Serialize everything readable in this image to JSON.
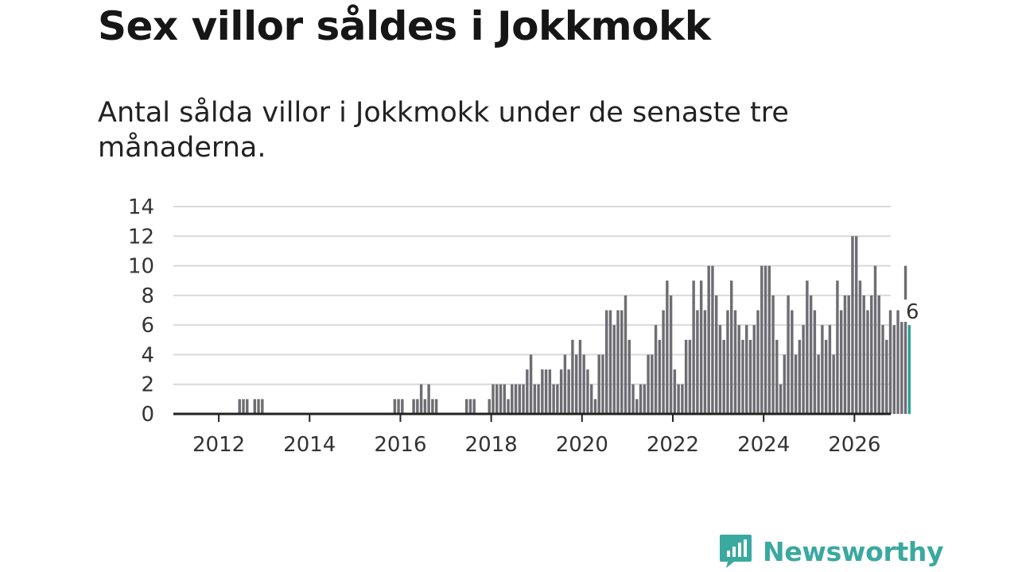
{
  "title": "Sex villor såldes i Jokkmokk",
  "subtitle": "Antal sålda villor i Jokkmokk under de senaste tre månaderna.",
  "brand": {
    "name": "Newsworthy",
    "color": "#3aa9a0"
  },
  "chart_data": {
    "type": "bar",
    "title": "Sex villor såldes i Jokkmokk",
    "subtitle": "Antal sålda villor i Jokkmokk under de senaste tre månaderna.",
    "xlabel": "",
    "ylabel": "",
    "ylim": [
      0,
      14
    ],
    "yticks": [
      0,
      2,
      4,
      6,
      8,
      10,
      12,
      14
    ],
    "xlim": [
      2011,
      2026.8
    ],
    "xticks": [
      2012,
      2014,
      2016,
      2018,
      2020,
      2022,
      2024,
      2026
    ],
    "grid": true,
    "bar_color": "#6d6d73",
    "highlight_color": "#2aa198",
    "start": "2011-01",
    "frequency": "monthly",
    "values": [
      0,
      0,
      0,
      0,
      0,
      0,
      0,
      0,
      0,
      0,
      0,
      0,
      0,
      0,
      0,
      0,
      0,
      1,
      1,
      1,
      0,
      1,
      1,
      1,
      0,
      0,
      0,
      0,
      0,
      0,
      0,
      0,
      0,
      0,
      0,
      0,
      0,
      0,
      0,
      0,
      0,
      0,
      0,
      0,
      0,
      0,
      0,
      0,
      0,
      0,
      0,
      0,
      0,
      0,
      0,
      0,
      0,
      0,
      1,
      1,
      1,
      0,
      0,
      1,
      1,
      2,
      1,
      2,
      1,
      1,
      0,
      0,
      0,
      0,
      0,
      0,
      0,
      1,
      1,
      1,
      0,
      0,
      0,
      1,
      2,
      2,
      2,
      2,
      1,
      2,
      2,
      2,
      2,
      3,
      4,
      2,
      2,
      3,
      3,
      3,
      2,
      2,
      3,
      4,
      3,
      5,
      4,
      5,
      4,
      3,
      2,
      1,
      4,
      4,
      7,
      7,
      6,
      7,
      7,
      8,
      5,
      2,
      1,
      2,
      2,
      4,
      4,
      6,
      5,
      7,
      9,
      8,
      3,
      2,
      2,
      5,
      5,
      9,
      7,
      9,
      7,
      10,
      10,
      8,
      6,
      5,
      7,
      9,
      7,
      6,
      5,
      6,
      5,
      6,
      7,
      10,
      10,
      10,
      8,
      5,
      2,
      4,
      8,
      7,
      4,
      5,
      6,
      9,
      8,
      7,
      4,
      6,
      5,
      6,
      4,
      9,
      7,
      8,
      8,
      12,
      12,
      9,
      8,
      7,
      8,
      10,
      8,
      6,
      5,
      7,
      6,
      7,
      7,
      10,
      6
    ],
    "last_value": 6,
    "last_value_label": "6"
  }
}
